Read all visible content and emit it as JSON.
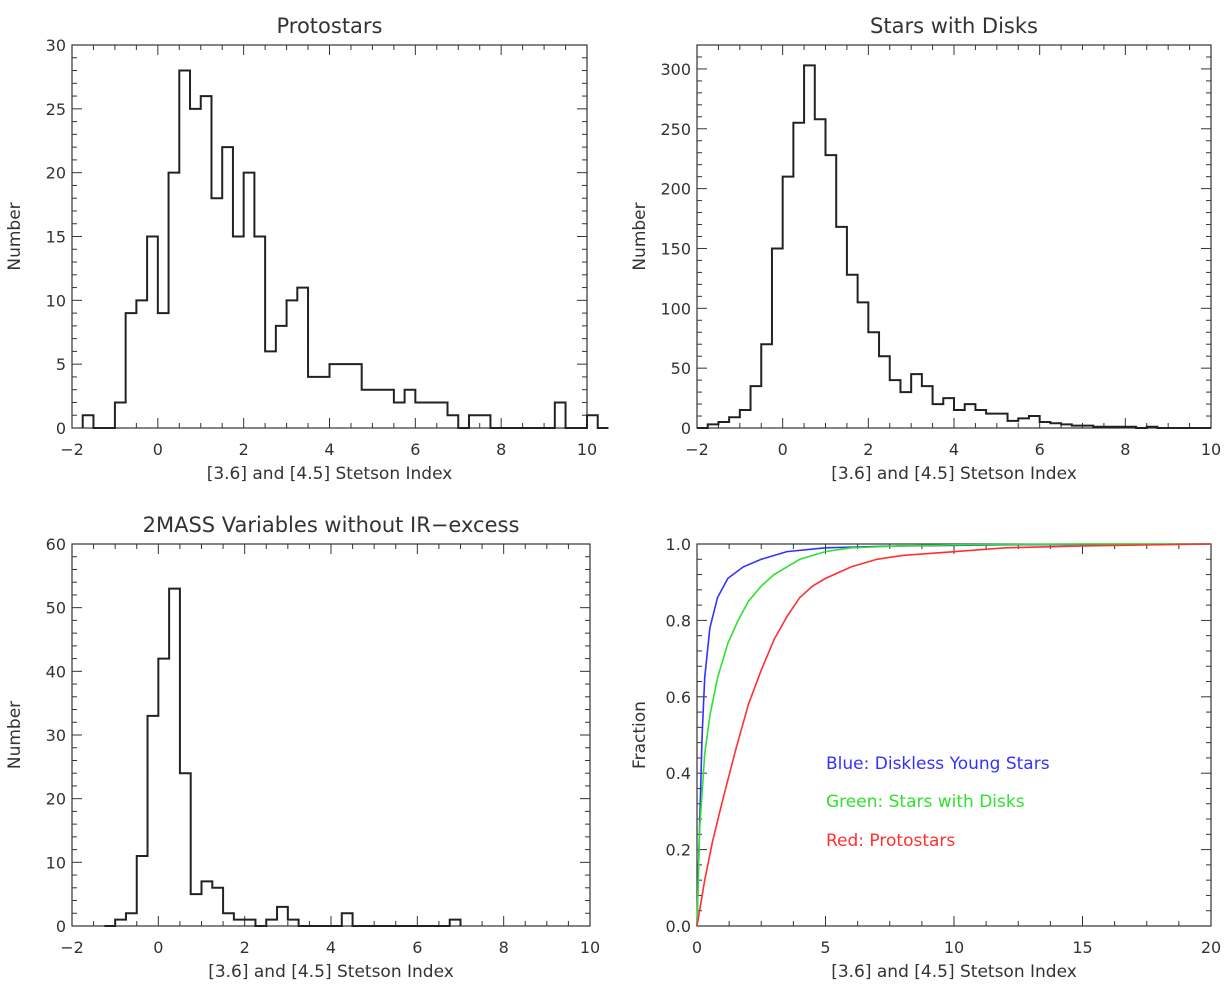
{
  "chart_data": [
    {
      "type": "histogram",
      "title": "Protostars",
      "xlabel": "[3.6] and [4.5] Stetson Index",
      "ylabel": "Number",
      "xlim": [
        -2,
        10
      ],
      "ylim": [
        0,
        30
      ],
      "xticks": [
        -2,
        0,
        2,
        4,
        6,
        8,
        10
      ],
      "yticks": [
        0,
        5,
        10,
        15,
        20,
        25,
        30
      ],
      "bin_width": 0.25,
      "bin_start": -1.75,
      "values": [
        1,
        0,
        0,
        2,
        9,
        10,
        15,
        9,
        20,
        28,
        25,
        26,
        18,
        22,
        15,
        20,
        15,
        6,
        8,
        10,
        11,
        4,
        4,
        5,
        5,
        5,
        3,
        3,
        3,
        2,
        3,
        2,
        2,
        2,
        1,
        0,
        1,
        1,
        0,
        0,
        0,
        0,
        0,
        0,
        2,
        0,
        0,
        1,
        0
      ]
    },
    {
      "type": "histogram",
      "title": "Stars with Disks",
      "xlabel": "[3.6] and [4.5] Stetson Index",
      "ylabel": "Number",
      "xlim": [
        -2,
        10
      ],
      "ylim": [
        0,
        320
      ],
      "xticks": [
        -2,
        0,
        2,
        4,
        6,
        8,
        10
      ],
      "yticks": [
        0,
        50,
        100,
        150,
        200,
        250,
        300
      ],
      "bin_width": 0.25,
      "bin_start": -2.0,
      "values": [
        0,
        3,
        5,
        9,
        15,
        35,
        70,
        150,
        210,
        255,
        303,
        258,
        228,
        168,
        128,
        105,
        80,
        60,
        40,
        30,
        45,
        35,
        20,
        25,
        15,
        20,
        15,
        12,
        12,
        6,
        8,
        10,
        5,
        4,
        3,
        2,
        2,
        1,
        1,
        1,
        1,
        0,
        1,
        0,
        0,
        0,
        0,
        0
      ]
    },
    {
      "type": "histogram",
      "title": "2MASS Variables without IR−excess",
      "xlabel": "[3.6] and [4.5] Stetson Index",
      "ylabel": "Number",
      "xlim": [
        -2,
        10
      ],
      "ylim": [
        0,
        60
      ],
      "xticks": [
        -2,
        0,
        2,
        4,
        6,
        8,
        10
      ],
      "yticks": [
        0,
        10,
        20,
        30,
        40,
        50,
        60
      ],
      "bin_width": 0.25,
      "bin_start": -1.25,
      "values": [
        0,
        1,
        2,
        11,
        33,
        42,
        53,
        24,
        5,
        7,
        6,
        2,
        1,
        1,
        0,
        1,
        3,
        1,
        0,
        0,
        0,
        0,
        2,
        0,
        0,
        0,
        0,
        0,
        0,
        0,
        0,
        0,
        1
      ]
    },
    {
      "type": "line",
      "title": "",
      "xlabel": "[3.6] and [4.5] Stetson Index",
      "ylabel": "Fraction",
      "xlim": [
        0,
        20
      ],
      "ylim": [
        0,
        1.0
      ],
      "xticks": [
        0,
        5,
        10,
        15,
        20
      ],
      "yticks": [
        0.0,
        0.2,
        0.4,
        0.6,
        0.8,
        1.0
      ],
      "ytick_labels": [
        "0.0",
        "0.2",
        "0.4",
        "0.6",
        "0.8",
        "1.0"
      ],
      "annotations": [
        "Blue: Diskless Young Stars",
        "Green: Stars with Disks",
        "Red: Protostars"
      ],
      "series": [
        {
          "color": "#3232ff",
          "x": [
            0,
            0.1,
            0.2,
            0.3,
            0.5,
            0.8,
            1.2,
            1.8,
            2.5,
            3.5,
            5,
            8,
            12,
            20
          ],
          "y": [
            0.0,
            0.26,
            0.5,
            0.65,
            0.78,
            0.86,
            0.91,
            0.94,
            0.96,
            0.98,
            0.99,
            0.995,
            0.998,
            1.0
          ]
        },
        {
          "color": "#30e030",
          "x": [
            0,
            0.1,
            0.3,
            0.5,
            0.8,
            1.2,
            1.6,
            2,
            2.5,
            3,
            3.5,
            4,
            5,
            6,
            8,
            10,
            15,
            20
          ],
          "y": [
            0.0,
            0.25,
            0.45,
            0.55,
            0.65,
            0.74,
            0.8,
            0.85,
            0.89,
            0.92,
            0.94,
            0.96,
            0.98,
            0.99,
            0.995,
            0.998,
            1.0,
            1.0
          ]
        },
        {
          "color": "#ff3030",
          "x": [
            0,
            0.3,
            0.6,
            1,
            1.5,
            2,
            2.5,
            3,
            3.5,
            4,
            4.5,
            5,
            6,
            7,
            8,
            10,
            12,
            15,
            20
          ],
          "y": [
            0.0,
            0.12,
            0.22,
            0.33,
            0.46,
            0.58,
            0.67,
            0.75,
            0.81,
            0.86,
            0.89,
            0.91,
            0.94,
            0.96,
            0.97,
            0.98,
            0.99,
            0.995,
            1.0
          ]
        }
      ]
    }
  ]
}
